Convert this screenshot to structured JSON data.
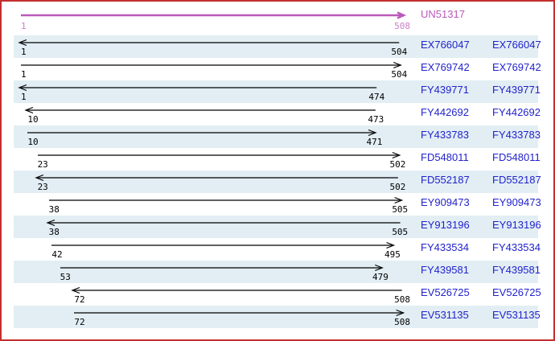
{
  "reference": {
    "label": "UN51317",
    "start": "1",
    "end": "508"
  },
  "axis": {
    "min": 1,
    "max": 508
  },
  "colors": {
    "page_border": "#c32e2e",
    "row_band": "#e2eef4",
    "accession_link": "#2222cc",
    "reference_arrow": "#b95abb",
    "reference_coords": "#c97fc6",
    "read_arrow": "#000000"
  },
  "chart_data": {
    "type": "alignment-arrows",
    "title": "UN51317",
    "reference": {
      "name": "UN51317",
      "start": 1,
      "end": 508,
      "direction": "right"
    },
    "reads": [
      {
        "accession": "EX766047",
        "start": 1,
        "end": 504,
        "direction": "left"
      },
      {
        "accession": "EX769742",
        "start": 1,
        "end": 504,
        "direction": "right"
      },
      {
        "accession": "FY439771",
        "start": 1,
        "end": 474,
        "direction": "left"
      },
      {
        "accession": "FY442692",
        "start": 10,
        "end": 473,
        "direction": "left"
      },
      {
        "accession": "FY433783",
        "start": 10,
        "end": 471,
        "direction": "right"
      },
      {
        "accession": "FD548011",
        "start": 23,
        "end": 502,
        "direction": "right"
      },
      {
        "accession": "FD552187",
        "start": 23,
        "end": 502,
        "direction": "left"
      },
      {
        "accession": "EY909473",
        "start": 38,
        "end": 505,
        "direction": "right"
      },
      {
        "accession": "EY913196",
        "start": 38,
        "end": 505,
        "direction": "left"
      },
      {
        "accession": "FY433534",
        "start": 42,
        "end": 495,
        "direction": "right"
      },
      {
        "accession": "FY439581",
        "start": 53,
        "end": 479,
        "direction": "right"
      },
      {
        "accession": "EV526725",
        "start": 72,
        "end": 508,
        "direction": "left"
      },
      {
        "accession": "EV531135",
        "start": 72,
        "end": 508,
        "direction": "right"
      }
    ]
  }
}
